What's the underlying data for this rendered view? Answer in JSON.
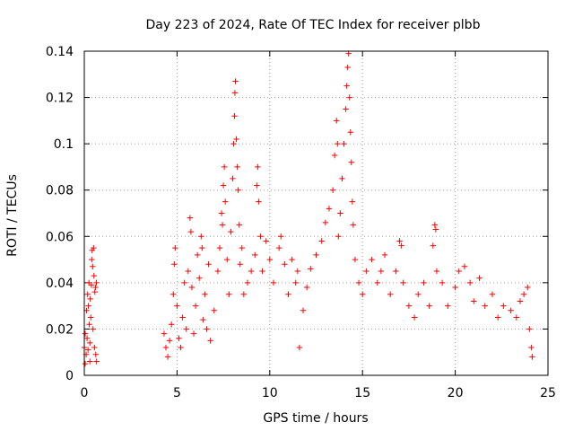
{
  "colors": {
    "series": "#ff0000",
    "grid": "#a0a0a0",
    "axis": "#000000",
    "background": "#ffffff"
  },
  "chart_data": {
    "type": "scatter",
    "title": "Day 223 of 2024, Rate Of TEC Index for receiver plbb",
    "xlabel": "GPS time / hours",
    "ylabel": "ROTI / TECUs",
    "xlim": [
      0,
      25
    ],
    "ylim": [
      0,
      0.14
    ],
    "xticks": [
      0,
      5,
      10,
      15,
      20,
      25
    ],
    "xtick_labels": [
      "0",
      "5",
      "10",
      "15",
      "20",
      "25"
    ],
    "yticks": [
      0,
      0.02,
      0.04,
      0.06,
      0.08,
      0.1,
      0.12,
      0.14
    ],
    "ytick_labels": [
      "0",
      "0.02",
      "0.04",
      "0.06",
      "0.08",
      "0.1",
      "0.12",
      "0.14"
    ],
    "grid": true,
    "marker": "plus",
    "legend": "none",
    "series": [
      {
        "name": "ROTI",
        "points": [
          [
            0.0,
            0.012
          ],
          [
            0.05,
            0.018
          ],
          [
            0.1,
            0.009
          ],
          [
            0.12,
            0.028
          ],
          [
            0.15,
            0.016
          ],
          [
            0.18,
            0.035
          ],
          [
            0.2,
            0.011
          ],
          [
            0.22,
            0.03
          ],
          [
            0.25,
            0.04
          ],
          [
            0.27,
            0.022
          ],
          [
            0.3,
            0.014
          ],
          [
            0.32,
            0.033
          ],
          [
            0.35,
            0.025
          ],
          [
            0.38,
            0.039
          ],
          [
            0.4,
            0.05
          ],
          [
            0.42,
            0.054
          ],
          [
            0.45,
            0.047
          ],
          [
            0.47,
            0.02
          ],
          [
            0.5,
            0.055
          ],
          [
            0.52,
            0.043
          ],
          [
            0.55,
            0.012
          ],
          [
            0.57,
            0.036
          ],
          [
            0.6,
            0.038
          ],
          [
            0.62,
            0.009
          ],
          [
            0.65,
            0.04
          ],
          [
            0.66,
            0.006
          ],
          [
            0.05,
            0.005
          ],
          [
            0.3,
            0.006
          ],
          [
            4.3,
            0.018
          ],
          [
            4.4,
            0.012
          ],
          [
            4.5,
            0.008
          ],
          [
            4.6,
            0.015
          ],
          [
            4.7,
            0.022
          ],
          [
            4.8,
            0.035
          ],
          [
            4.85,
            0.048
          ],
          [
            4.9,
            0.055
          ],
          [
            5.0,
            0.03
          ],
          [
            5.1,
            0.016
          ],
          [
            5.2,
            0.012
          ],
          [
            5.3,
            0.025
          ],
          [
            5.4,
            0.04
          ],
          [
            5.5,
            0.02
          ],
          [
            5.6,
            0.045
          ],
          [
            5.7,
            0.068
          ],
          [
            5.75,
            0.062
          ],
          [
            5.8,
            0.038
          ],
          [
            5.9,
            0.018
          ],
          [
            6.0,
            0.03
          ],
          [
            6.1,
            0.052
          ],
          [
            6.2,
            0.042
          ],
          [
            6.3,
            0.06
          ],
          [
            6.35,
            0.055
          ],
          [
            6.4,
            0.024
          ],
          [
            6.5,
            0.035
          ],
          [
            6.6,
            0.02
          ],
          [
            6.7,
            0.048
          ],
          [
            6.8,
            0.015
          ],
          [
            7.0,
            0.028
          ],
          [
            7.2,
            0.045
          ],
          [
            7.3,
            0.055
          ],
          [
            7.4,
            0.07
          ],
          [
            7.45,
            0.065
          ],
          [
            7.5,
            0.082
          ],
          [
            7.55,
            0.09
          ],
          [
            7.6,
            0.075
          ],
          [
            7.7,
            0.05
          ],
          [
            7.8,
            0.035
          ],
          [
            7.9,
            0.062
          ],
          [
            8.0,
            0.085
          ],
          [
            8.05,
            0.1
          ],
          [
            8.1,
            0.112
          ],
          [
            8.12,
            0.122
          ],
          [
            8.15,
            0.127
          ],
          [
            8.2,
            0.102
          ],
          [
            8.25,
            0.09
          ],
          [
            8.3,
            0.08
          ],
          [
            8.35,
            0.065
          ],
          [
            8.4,
            0.048
          ],
          [
            8.5,
            0.055
          ],
          [
            8.6,
            0.035
          ],
          [
            8.8,
            0.04
          ],
          [
            9.0,
            0.045
          ],
          [
            9.2,
            0.052
          ],
          [
            9.3,
            0.082
          ],
          [
            9.35,
            0.09
          ],
          [
            9.4,
            0.075
          ],
          [
            9.5,
            0.06
          ],
          [
            9.6,
            0.045
          ],
          [
            9.8,
            0.058
          ],
          [
            10.0,
            0.05
          ],
          [
            10.2,
            0.04
          ],
          [
            10.5,
            0.055
          ],
          [
            10.6,
            0.06
          ],
          [
            10.8,
            0.048
          ],
          [
            11.0,
            0.035
          ],
          [
            11.2,
            0.05
          ],
          [
            11.4,
            0.04
          ],
          [
            11.5,
            0.045
          ],
          [
            11.6,
            0.012
          ],
          [
            11.8,
            0.028
          ],
          [
            12.0,
            0.038
          ],
          [
            12.2,
            0.046
          ],
          [
            12.5,
            0.052
          ],
          [
            12.8,
            0.058
          ],
          [
            13.0,
            0.066
          ],
          [
            13.2,
            0.072
          ],
          [
            13.4,
            0.08
          ],
          [
            13.5,
            0.095
          ],
          [
            13.6,
            0.11
          ],
          [
            13.65,
            0.1
          ],
          [
            13.7,
            0.06
          ],
          [
            13.8,
            0.07
          ],
          [
            13.9,
            0.085
          ],
          [
            14.0,
            0.1
          ],
          [
            14.1,
            0.115
          ],
          [
            14.15,
            0.125
          ],
          [
            14.2,
            0.133
          ],
          [
            14.25,
            0.139
          ],
          [
            14.3,
            0.12
          ],
          [
            14.35,
            0.105
          ],
          [
            14.4,
            0.092
          ],
          [
            14.45,
            0.075
          ],
          [
            14.5,
            0.065
          ],
          [
            14.6,
            0.05
          ],
          [
            14.8,
            0.04
          ],
          [
            15.0,
            0.035
          ],
          [
            15.2,
            0.045
          ],
          [
            15.5,
            0.05
          ],
          [
            15.8,
            0.04
          ],
          [
            16.0,
            0.045
          ],
          [
            16.2,
            0.052
          ],
          [
            16.5,
            0.035
          ],
          [
            16.8,
            0.045
          ],
          [
            17.0,
            0.058
          ],
          [
            17.1,
            0.056
          ],
          [
            17.2,
            0.04
          ],
          [
            17.5,
            0.03
          ],
          [
            17.8,
            0.025
          ],
          [
            18.0,
            0.035
          ],
          [
            18.3,
            0.04
          ],
          [
            18.6,
            0.03
          ],
          [
            18.8,
            0.056
          ],
          [
            18.9,
            0.065
          ],
          [
            18.95,
            0.063
          ],
          [
            19.0,
            0.045
          ],
          [
            19.3,
            0.04
          ],
          [
            19.6,
            0.03
          ],
          [
            20.0,
            0.038
          ],
          [
            20.2,
            0.045
          ],
          [
            20.5,
            0.047
          ],
          [
            20.8,
            0.04
          ],
          [
            21.0,
            0.032
          ],
          [
            21.3,
            0.042
          ],
          [
            21.6,
            0.03
          ],
          [
            22.0,
            0.035
          ],
          [
            22.3,
            0.025
          ],
          [
            22.6,
            0.03
          ],
          [
            23.0,
            0.028
          ],
          [
            23.3,
            0.025
          ],
          [
            23.5,
            0.032
          ],
          [
            23.7,
            0.035
          ],
          [
            23.9,
            0.038
          ],
          [
            24.0,
            0.02
          ],
          [
            24.1,
            0.012
          ],
          [
            24.15,
            0.008
          ]
        ]
      }
    ]
  }
}
